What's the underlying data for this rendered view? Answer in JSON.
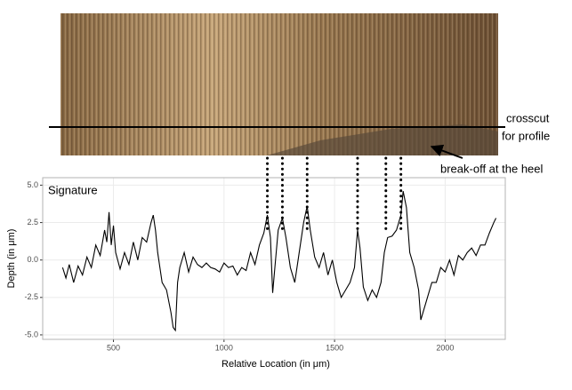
{
  "chart_data": {
    "type": "line",
    "title": "Signature",
    "xlabel": "Relative Location (in μm)",
    "ylabel": "Depth (in μm)",
    "annotations": [
      "crosscut",
      "for profile",
      "break-off at the heel"
    ],
    "landmarks_x": [
      1196,
      1264,
      1376,
      1604,
      1732,
      1800
    ],
    "x": [
      270,
      285,
      300,
      320,
      340,
      360,
      380,
      400,
      420,
      440,
      460,
      470,
      480,
      490,
      500,
      510,
      530,
      550,
      570,
      590,
      610,
      630,
      650,
      670,
      680,
      690,
      700,
      720,
      740,
      760,
      770,
      780,
      790,
      800,
      820,
      840,
      860,
      880,
      900,
      920,
      940,
      960,
      980,
      1000,
      1020,
      1040,
      1060,
      1080,
      1100,
      1120,
      1140,
      1160,
      1180,
      1196,
      1210,
      1220,
      1230,
      1245,
      1264,
      1280,
      1300,
      1320,
      1340,
      1360,
      1376,
      1390,
      1410,
      1430,
      1450,
      1470,
      1490,
      1510,
      1530,
      1550,
      1570,
      1590,
      1604,
      1615,
      1630,
      1650,
      1670,
      1690,
      1710,
      1725,
      1740,
      1760,
      1780,
      1800,
      1810,
      1825,
      1840,
      1860,
      1880,
      1890,
      1900,
      1920,
      1940,
      1960,
      1980,
      2000,
      2020,
      2040,
      2060,
      2080,
      2100,
      2120,
      2140,
      2160,
      2180,
      2200,
      2220,
      2230
    ],
    "series": [
      {
        "name": "Signature",
        "color": "#000000",
        "values": [
          -0.5,
          -1.2,
          -0.3,
          -1.5,
          -0.4,
          -1.0,
          0.2,
          -0.5,
          1.0,
          0.3,
          2.0,
          1.2,
          3.2,
          1.0,
          2.3,
          0.5,
          -0.6,
          0.5,
          -0.3,
          1.2,
          0.0,
          1.5,
          1.2,
          2.5,
          3.0,
          2.0,
          0.5,
          -1.5,
          -2.0,
          -3.5,
          -4.5,
          -4.7,
          -1.5,
          -0.5,
          0.5,
          -0.8,
          0.2,
          -0.3,
          -0.5,
          -0.2,
          -0.5,
          -0.6,
          -0.8,
          -0.2,
          -0.5,
          -0.4,
          -1.0,
          -0.5,
          -0.7,
          0.5,
          -0.3,
          1.0,
          1.8,
          3.0,
          1.5,
          -2.2,
          -0.5,
          2.0,
          2.8,
          1.5,
          -0.5,
          -1.5,
          0.5,
          2.5,
          3.6,
          2.0,
          0.2,
          -0.5,
          0.5,
          -1.0,
          0.0,
          -1.5,
          -2.5,
          -2.0,
          -1.5,
          -0.5,
          2.0,
          0.8,
          -1.8,
          -2.7,
          -2.0,
          -2.5,
          -1.5,
          0.5,
          1.5,
          1.6,
          2.0,
          3.0,
          4.6,
          3.5,
          0.5,
          -0.5,
          -2.0,
          -4.0,
          -3.5,
          -2.5,
          -1.5,
          -1.5,
          -0.5,
          -0.8,
          0.0,
          -1.0,
          0.3,
          0.0,
          0.5,
          0.8,
          0.3,
          1.0,
          1.0,
          1.8,
          2.5,
          2.8
        ]
      }
    ],
    "xlim": [
      180,
      2272
    ],
    "ylim": [
      -5.3,
      5.5
    ],
    "xticks": [
      500,
      1000,
      1500,
      2000
    ],
    "yticks": [
      {
        "value": -5,
        "label": "-5.0"
      },
      {
        "value": -2.5,
        "label": "-2.5"
      },
      {
        "value": 0,
        "label": "0.0"
      },
      {
        "value": 2.5,
        "label": "2.5"
      },
      {
        "value": 5,
        "label": "5.0"
      }
    ],
    "grid": true
  }
}
